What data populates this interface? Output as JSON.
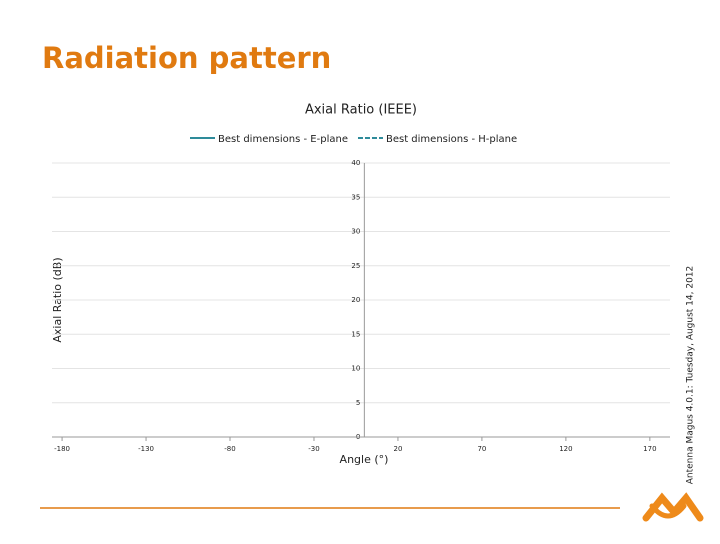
{
  "slide_title": "Radiation pattern",
  "footer": "Antenna Magus 4.0.1: Tuesday, August 14, 2012",
  "chart_data": {
    "type": "line",
    "title": "Axial Ratio (IEEE)",
    "x_label": "Angle (°)",
    "y_label": "Axial Ratio (dB)",
    "x": [],
    "series": [
      {
        "name": "Best dimensions - E-plane",
        "color": "#2e8b9a",
        "dash": false,
        "values": []
      },
      {
        "name": "Best dimensions - H-plane",
        "color": "#2e8b9a",
        "dash": true,
        "values": []
      }
    ],
    "xlim": [
      -186,
      182
    ],
    "xticks": [
      -180,
      -130,
      -80,
      -30,
      20,
      70,
      120,
      170
    ],
    "ylim": [
      0,
      40
    ],
    "yticks": [
      0,
      5,
      10,
      15,
      20,
      25,
      30,
      35,
      40
    ],
    "grid": true
  }
}
